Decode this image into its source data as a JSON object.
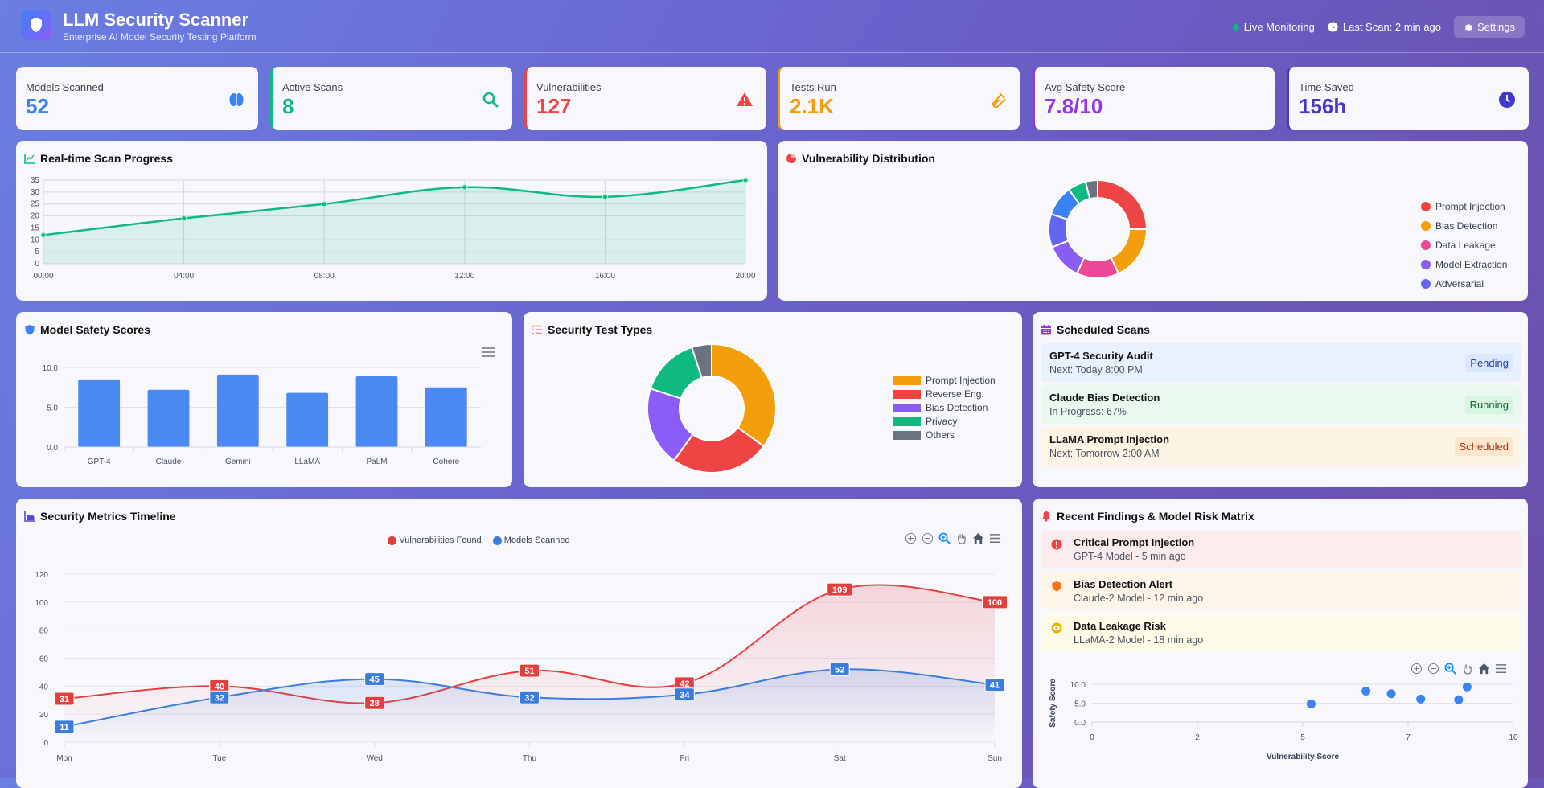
{
  "header": {
    "title": "LLM Security Scanner",
    "subtitle": "Enterprise AI Model Security Testing Platform",
    "live_label": "Live Monitoring",
    "last_scan": "Last Scan: 2 min ago",
    "settings_label": "Settings"
  },
  "stats": [
    {
      "label": "Models Scanned",
      "value": "52",
      "color": "#3b82f6",
      "icon": "brain-icon"
    },
    {
      "label": "Active Scans",
      "value": "8",
      "color": "#10b981",
      "icon": "search-icon"
    },
    {
      "label": "Vulnerabilities",
      "value": "127",
      "color": "#ef4444",
      "icon": "warning-icon"
    },
    {
      "label": "Tests Run",
      "value": "2.1K",
      "color": "#f59e0b",
      "icon": "vial-icon"
    },
    {
      "label": "Avg Safety Score",
      "value": "7.8/10",
      "color": "#9333ea",
      "icon": "shield-icon"
    },
    {
      "label": "Time Saved",
      "value": "156h",
      "color": "#4338ca",
      "icon": "clock-icon"
    }
  ],
  "panels": {
    "scan_progress": "Real-time Scan Progress",
    "vuln_dist": "Vulnerability Distribution",
    "safety_scores": "Model Safety Scores",
    "test_types": "Security Test Types",
    "scheduled": "Scheduled Scans",
    "timeline": "Security Metrics Timeline",
    "findings": "Recent Findings & Model Risk Matrix"
  },
  "scheduled_scans": [
    {
      "name": "GPT-4 Security Audit",
      "detail": "Next: Today 8:00 PM",
      "status": "Pending",
      "bg": "#e8f1fd",
      "badge_bg": "#dbe7fb",
      "badge_fg": "#1e40af"
    },
    {
      "name": "Claude Bias Detection",
      "detail": "In Progress: 67%",
      "status": "Running",
      "bg": "#e9f9ef",
      "badge_bg": "#d8f5e1",
      "badge_fg": "#166534"
    },
    {
      "name": "LLaMA Prompt Injection",
      "detail": "Next: Tomorrow 2:00 AM",
      "status": "Scheduled",
      "bg": "#fef4e6",
      "badge_bg": "#fde6cc",
      "badge_fg": "#9a3412"
    }
  ],
  "findings": [
    {
      "title": "Critical Prompt Injection",
      "detail": "GPT-4 Model - 5 min ago",
      "icon": "exclamation-circle-icon",
      "color": "#ef4444",
      "bg": "#fdeced"
    },
    {
      "title": "Bias Detection Alert",
      "detail": "Claude-2 Model - 12 min ago",
      "icon": "shield-icon",
      "color": "#f97316",
      "bg": "#fef4e8"
    },
    {
      "title": "Data Leakage Risk",
      "detail": "LLaMA-2 Model - 18 min ago",
      "icon": "eye-icon",
      "color": "#eab308",
      "bg": "#fefbe6"
    }
  ],
  "chart_data": [
    {
      "id": "scan_progress",
      "type": "area",
      "categories": [
        "00:00",
        "04:00",
        "08:00",
        "12:00",
        "16:00",
        "20:00"
      ],
      "values": [
        12,
        19,
        25,
        32,
        28,
        35
      ],
      "ylim": [
        0,
        35
      ],
      "yticks": [
        0,
        5,
        10,
        15,
        20,
        25,
        30,
        35
      ],
      "grid": true,
      "color": "#10b981"
    },
    {
      "id": "vuln_dist",
      "type": "pie",
      "donut": true,
      "labels": [
        "Prompt Injection",
        "Bias Detection",
        "Data Leakage",
        "Model Extraction",
        "Adversarial",
        "",
        "",
        ""
      ],
      "values": [
        25,
        18,
        14,
        12,
        11,
        10,
        6,
        4
      ],
      "colors": [
        "#ef4444",
        "#f59e0b",
        "#ec4899",
        "#8b5cf6",
        "#6366f1",
        "#3b82f6",
        "#10b981",
        "#6b7280"
      ],
      "legend": "right"
    },
    {
      "id": "safety_scores",
      "type": "bar",
      "categories": [
        "GPT-4",
        "Claude",
        "Gemini",
        "LLaMA",
        "PaLM",
        "Cohere"
      ],
      "values": [
        8.5,
        7.2,
        9.1,
        6.8,
        8.9,
        7.5
      ],
      "ylim": [
        0,
        10
      ],
      "yticks": [
        "0.0",
        "5.0",
        "10.0"
      ],
      "color": "#4b8af3"
    },
    {
      "id": "test_types",
      "type": "pie",
      "donut": true,
      "labels": [
        "Prompt Injection",
        "Reverse Eng.",
        "Bias Detection",
        "Privacy",
        "Others"
      ],
      "values": [
        35,
        25,
        20,
        15,
        5
      ],
      "colors": [
        "#f59e0b",
        "#ef4444",
        "#8b5cf6",
        "#10b981",
        "#6b7280"
      ],
      "legend": "right"
    },
    {
      "id": "timeline",
      "type": "area",
      "categories": [
        "Mon",
        "Tue",
        "Wed",
        "Thu",
        "Fri",
        "Sat",
        "Sun"
      ],
      "series": [
        {
          "name": "Vulnerabilities Found",
          "values": [
            31,
            40,
            28,
            51,
            42,
            109,
            100
          ],
          "color": "#e53e3e"
        },
        {
          "name": "Models Scanned",
          "values": [
            11,
            32,
            45,
            32,
            34,
            52,
            41
          ],
          "color": "#3b7ddd"
        }
      ],
      "ylim": [
        0,
        120
      ],
      "yticks": [
        0,
        20,
        40,
        60,
        80,
        100,
        120
      ],
      "legend": "top",
      "data_labels": true
    },
    {
      "id": "risk_matrix",
      "type": "scatter",
      "xlabel": "Vulnerability Score",
      "ylabel": "Safety Score",
      "points": [
        [
          5.2,
          4.8
        ],
        [
          6.5,
          8.2
        ],
        [
          7.1,
          7.5
        ],
        [
          7.8,
          6.1
        ],
        [
          8.7,
          5.9
        ],
        [
          8.9,
          9.3
        ]
      ],
      "xlim": [
        0,
        10
      ],
      "ylim": [
        0,
        10
      ],
      "xticks": [
        "0",
        "2",
        "5",
        "7",
        "10"
      ],
      "yticks": [
        "0.0",
        "5.0",
        "10.0"
      ],
      "color": "#3b82f6"
    }
  ]
}
